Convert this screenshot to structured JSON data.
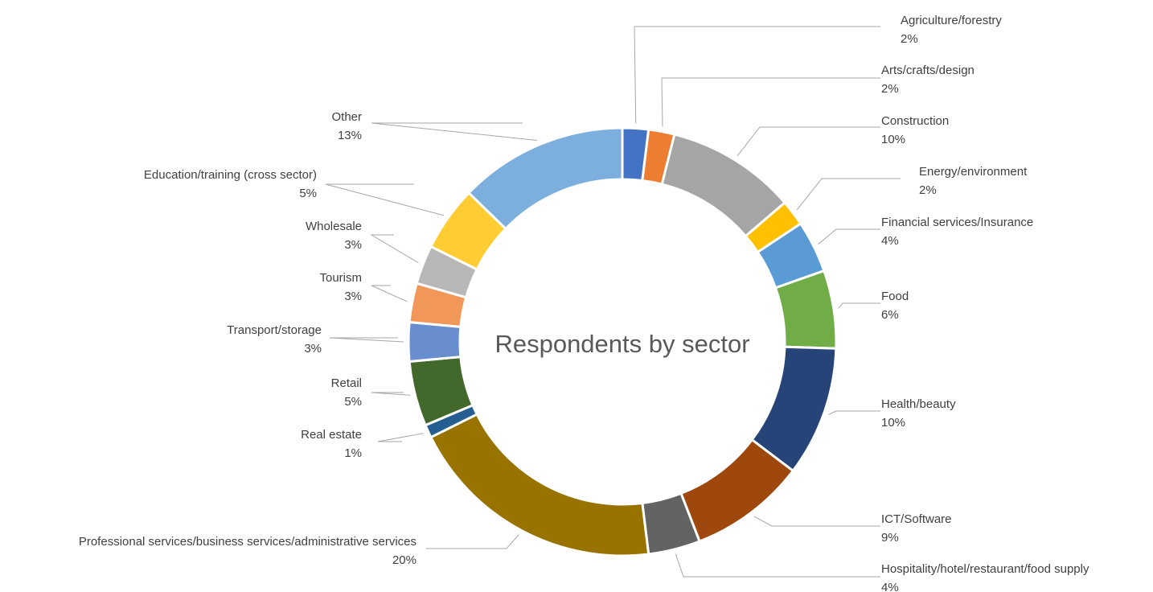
{
  "chart_data": {
    "type": "pie",
    "subtype": "donut",
    "title": "Respondents by sector",
    "slices": [
      {
        "label": "Agriculture/forestry",
        "value": 2,
        "display": "2%",
        "color": "#4472C4"
      },
      {
        "label": "Arts/crafts/design",
        "value": 2,
        "display": "2%",
        "color": "#ED7D31"
      },
      {
        "label": "Construction",
        "value": 10,
        "display": "10%",
        "color": "#A5A5A5"
      },
      {
        "label": "Energy/environment",
        "value": 2,
        "display": "2%",
        "color": "#FFC000"
      },
      {
        "label": "Financial services/Insurance",
        "value": 4,
        "display": "4%",
        "color": "#5B9BD5"
      },
      {
        "label": "Food",
        "value": 6,
        "display": "6%",
        "color": "#70AD47"
      },
      {
        "label": "Health/beauty",
        "value": 10,
        "display": "10%",
        "color": "#264478"
      },
      {
        "label": "ICT/Software",
        "value": 9,
        "display": "9%",
        "color": "#9E480E"
      },
      {
        "label": "Hospitality/hotel/restaurant/food supply",
        "value": 4,
        "display": "4%",
        "color": "#636363"
      },
      {
        "label": "Professional services/business services/administrative services",
        "value": 20,
        "display": "20%",
        "color": "#997300"
      },
      {
        "label": "Real estate",
        "value": 1,
        "display": "1%",
        "color": "#255E91"
      },
      {
        "label": "Retail",
        "value": 5,
        "display": "5%",
        "color": "#43682B"
      },
      {
        "label": "Transport/storage",
        "value": 3,
        "display": "3%",
        "color": "#698ED0"
      },
      {
        "label": "Tourism",
        "value": 3,
        "display": "3%",
        "color": "#F1975A"
      },
      {
        "label": "Wholesale",
        "value": 3,
        "display": "3%",
        "color": "#B7B7B7"
      },
      {
        "label": "Education/training (cross sector)",
        "value": 5,
        "display": "5%",
        "color": "#FFCD33"
      },
      {
        "label": "Other",
        "value": 13,
        "display": "13%",
        "color": "#7CAFDD"
      }
    ]
  }
}
